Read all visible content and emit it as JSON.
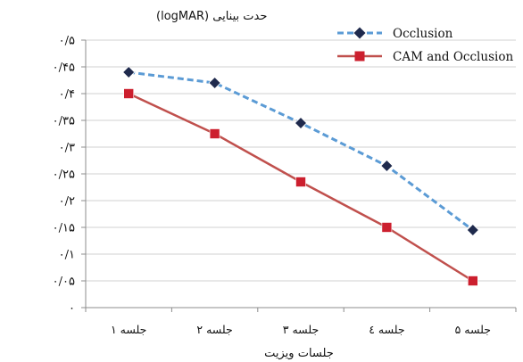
{
  "chart_data": {
    "type": "line",
    "ylabel": "حدت بینایی (logMAR)",
    "xlabel": "جلسات ویزیت",
    "categories": [
      "جلسه ۱",
      "جلسه ۲",
      "جلسه ۳",
      "جلسه ٤",
      "جلسه ۵"
    ],
    "ylim": [
      0,
      0.5
    ],
    "yticks": [
      0,
      0.05,
      0.1,
      0.15,
      0.2,
      0.25,
      0.3,
      0.35,
      0.4,
      0.45,
      0.5
    ],
    "ytick_labels": [
      "۰",
      "۰/۰۵",
      "۰/۱",
      "۰/۱۵",
      "۰/۲",
      "۰/۲۵",
      "۰/۳",
      "۰/۳۵",
      "۰/۴",
      "۰/۴۵",
      "۰/۵"
    ],
    "grid": "horizontal",
    "legend_position": "top-right",
    "series": [
      {
        "name": "Occlusion",
        "values": [
          0.44,
          0.42,
          0.345,
          0.265,
          0.145
        ],
        "color": "#5b9bd5",
        "line_style": "dashed",
        "marker": "diamond",
        "marker_color": "#1f2a4d"
      },
      {
        "name": "CAM and Occlusion",
        "values": [
          0.4,
          0.325,
          0.235,
          0.15,
          0.05
        ],
        "color": "#c0504d",
        "line_style": "solid",
        "marker": "square",
        "marker_color": "#cc1f2e"
      }
    ]
  }
}
